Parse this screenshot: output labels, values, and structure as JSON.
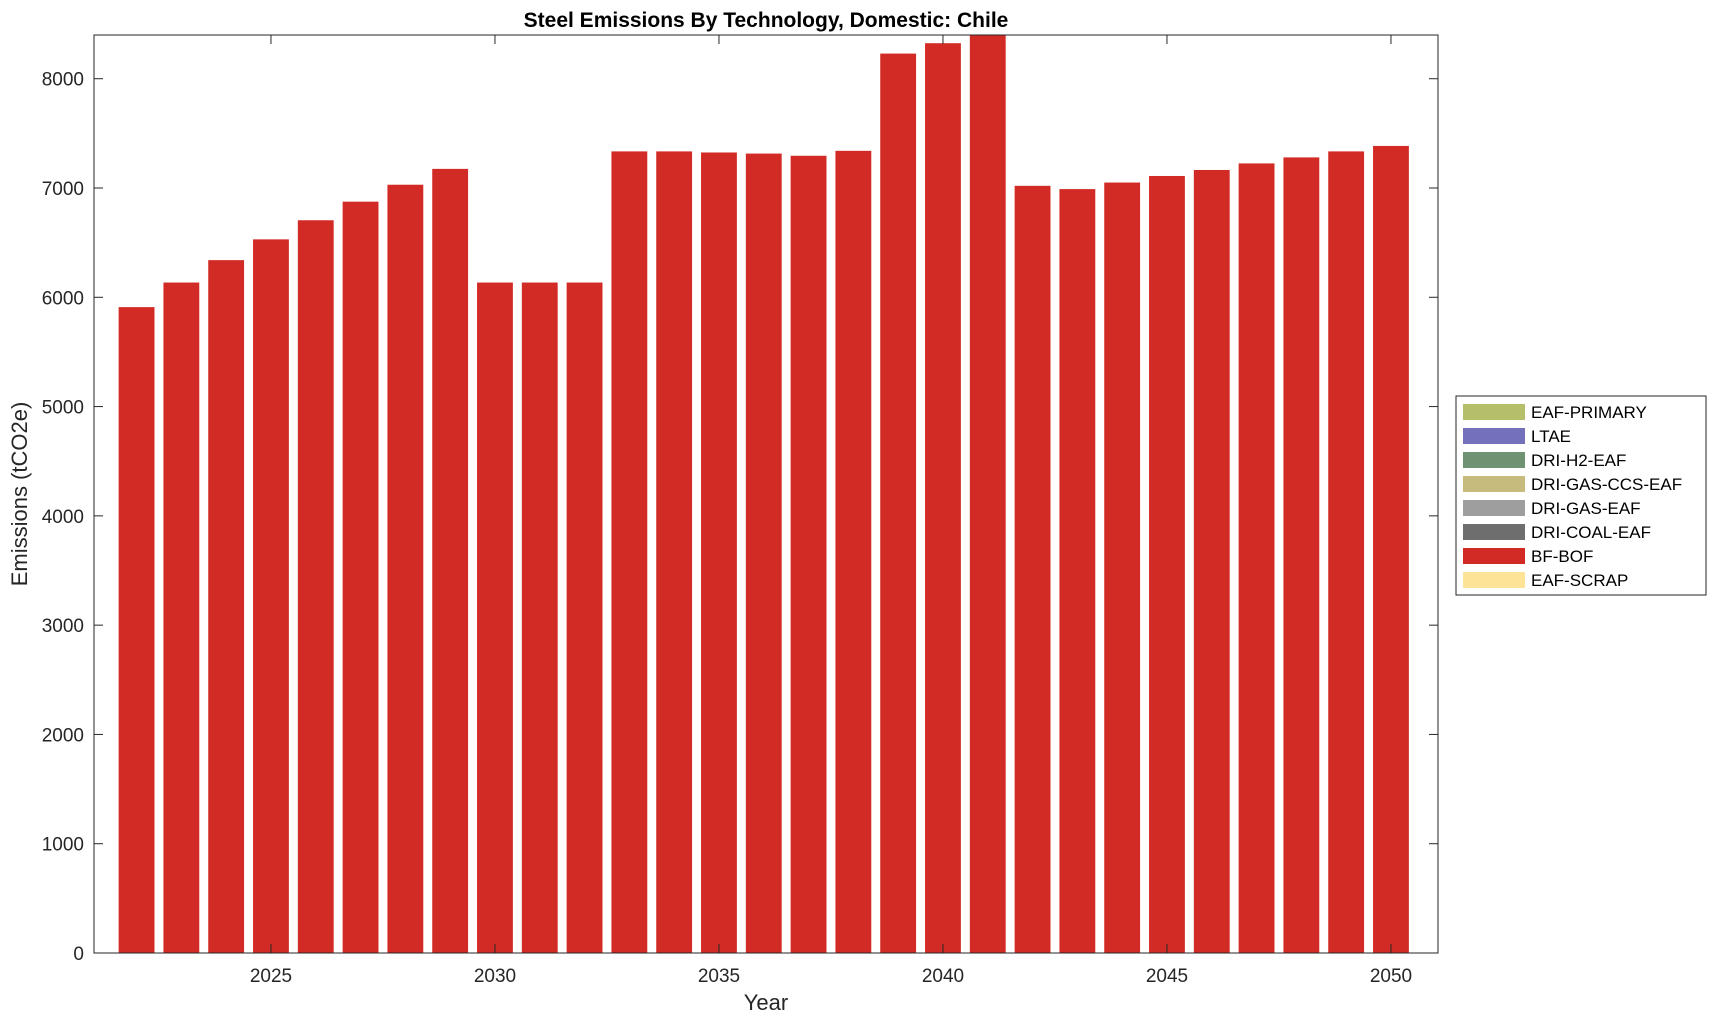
{
  "chart_data": {
    "type": "bar",
    "stacked": true,
    "title": "Steel Emissions By Technology, Domestic: Chile",
    "xlabel": "Year",
    "ylabel": "Emissions (tCO2e)",
    "x": [
      2022,
      2023,
      2024,
      2025,
      2026,
      2027,
      2028,
      2029,
      2030,
      2031,
      2032,
      2033,
      2034,
      2035,
      2036,
      2037,
      2038,
      2039,
      2040,
      2041,
      2042,
      2043,
      2044,
      2045,
      2046,
      2047,
      2048,
      2049,
      2050
    ],
    "xlim": [
      2021.05,
      2051.05
    ],
    "ylim": [
      0,
      8400
    ],
    "xticks": [
      2025,
      2030,
      2035,
      2040,
      2045,
      2050
    ],
    "yticks": [
      0,
      1000,
      2000,
      3000,
      4000,
      5000,
      6000,
      7000,
      8000
    ],
    "grid": false,
    "legend_position": "outside-right",
    "series": [
      {
        "name": "EAF-PRIMARY",
        "color": "#b5bf6a",
        "values": [
          0,
          0,
          0,
          0,
          0,
          0,
          0,
          0,
          0,
          0,
          0,
          0,
          0,
          0,
          0,
          0,
          0,
          0,
          0,
          0,
          0,
          0,
          0,
          0,
          0,
          0,
          0,
          0,
          0
        ]
      },
      {
        "name": "LTAE",
        "color": "#7570bb",
        "values": [
          0,
          0,
          0,
          0,
          0,
          0,
          0,
          0,
          0,
          0,
          0,
          0,
          0,
          0,
          0,
          0,
          0,
          0,
          0,
          0,
          0,
          0,
          0,
          0,
          0,
          0,
          0,
          0,
          0
        ]
      },
      {
        "name": "DRI-H2-EAF",
        "color": "#6f9272",
        "values": [
          0,
          0,
          0,
          0,
          0,
          0,
          0,
          0,
          0,
          0,
          0,
          0,
          0,
          0,
          0,
          0,
          0,
          0,
          0,
          0,
          0,
          0,
          0,
          0,
          0,
          0,
          0,
          0,
          0
        ]
      },
      {
        "name": "DRI-GAS-CCS-EAF",
        "color": "#c6bb7c",
        "values": [
          0,
          0,
          0,
          0,
          0,
          0,
          0,
          0,
          0,
          0,
          0,
          0,
          0,
          0,
          0,
          0,
          0,
          0,
          0,
          0,
          0,
          0,
          0,
          0,
          0,
          0,
          0,
          0,
          0
        ]
      },
      {
        "name": "DRI-GAS-EAF",
        "color": "#9e9e9e",
        "values": [
          0,
          0,
          0,
          0,
          0,
          0,
          0,
          0,
          0,
          0,
          0,
          0,
          0,
          0,
          0,
          0,
          0,
          0,
          0,
          0,
          0,
          0,
          0,
          0,
          0,
          0,
          0,
          0,
          0
        ]
      },
      {
        "name": "DRI-COAL-EAF",
        "color": "#6e6e6e",
        "values": [
          0,
          0,
          0,
          0,
          0,
          0,
          0,
          0,
          0,
          0,
          0,
          0,
          0,
          0,
          0,
          0,
          0,
          0,
          0,
          0,
          0,
          0,
          0,
          0,
          0,
          0,
          0,
          0,
          0
        ]
      },
      {
        "name": "BF-BOF",
        "color": "#d22b25",
        "values": [
          5910,
          6135,
          6340,
          6530,
          6705,
          6875,
          7030,
          7175,
          6135,
          6135,
          6135,
          7335,
          7335,
          7325,
          7315,
          7295,
          7340,
          8230,
          8325,
          8400,
          7020,
          6990,
          7050,
          7110,
          7165,
          7225,
          7280,
          7335,
          7385
        ]
      },
      {
        "name": "EAF-SCRAP",
        "color": "#fde395",
        "values": [
          0,
          0,
          0,
          0,
          0,
          0,
          0,
          0,
          0,
          0,
          0,
          0,
          0,
          0,
          0,
          0,
          0,
          0,
          0,
          0,
          0,
          0,
          0,
          0,
          0,
          0,
          0,
          0,
          0
        ]
      }
    ]
  }
}
